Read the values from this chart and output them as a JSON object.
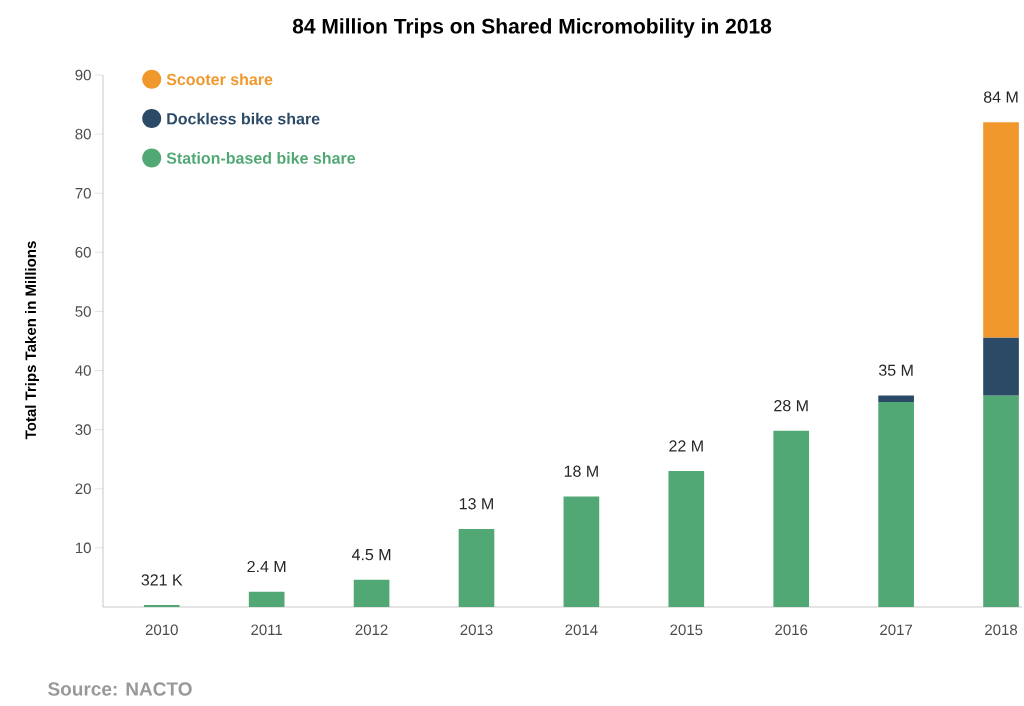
{
  "chart_data": {
    "type": "bar",
    "title": "84 Million Trips on Shared Micromobility in 2018",
    "ylabel": "Total Trips Taken in Millions",
    "categories": [
      "2010",
      "2011",
      "2012",
      "2013",
      "2014",
      "2015",
      "2016",
      "2017",
      "2018"
    ],
    "stacked": true,
    "series": [
      {
        "name": "Station-based bike share",
        "color": "#52a874",
        "values": [
          0.321,
          2.6,
          4.6,
          13.2,
          18.7,
          23.0,
          29.8,
          34.7,
          35.8
        ]
      },
      {
        "name": "Dockless bike share",
        "color": "#2b4a66",
        "values": [
          null,
          null,
          null,
          null,
          null,
          null,
          null,
          1.1,
          9.8
        ]
      },
      {
        "name": "Scooter share",
        "color": "#f0982c",
        "values": [
          null,
          null,
          null,
          null,
          null,
          null,
          null,
          null,
          36.4
        ]
      }
    ],
    "totals": [
      "321 K",
      "2.4 M",
      "4.5 M",
      "13 M",
      "18 M",
      "22 M",
      "28 M",
      "35 M",
      "84 M"
    ],
    "ylim": [
      0,
      90
    ],
    "yticks": [
      10,
      20,
      30,
      40,
      50,
      60,
      70,
      80,
      90
    ],
    "legend": "top left",
    "annotations": [
      "Source: NACTO"
    ]
  }
}
